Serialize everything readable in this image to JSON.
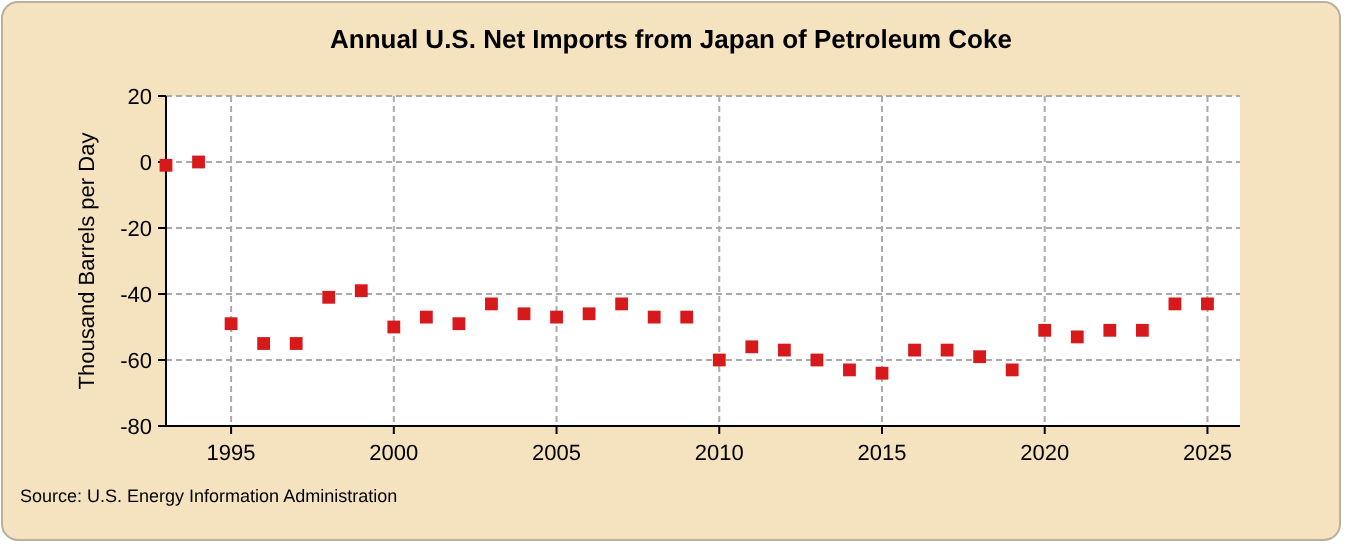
{
  "chart_data": {
    "type": "scatter",
    "title": "Annual U.S. Net Imports from Japan of Petroleum Coke",
    "ylabel": "Thousand Barrels per Day",
    "x": [
      1993,
      1994,
      1995,
      1996,
      1997,
      1998,
      1999,
      2000,
      2001,
      2002,
      2003,
      2004,
      2005,
      2006,
      2007,
      2008,
      2009,
      2010,
      2011,
      2012,
      2013,
      2014,
      2015,
      2016,
      2017,
      2018,
      2019,
      2020,
      2021,
      2022,
      2023,
      2024,
      2025
    ],
    "values": [
      -1,
      0,
      -49,
      -55,
      -55,
      -41,
      -39,
      -50,
      -47,
      -49,
      -43,
      -46,
      -47,
      -46,
      -43,
      -47,
      -47,
      -60,
      -56,
      -57,
      -60,
      -63,
      -64,
      -57,
      -57,
      -59,
      -63,
      -51,
      -53,
      -51,
      -51,
      -43,
      -43
    ],
    "color": "#d7191c",
    "marker": "square",
    "xlim": [
      1993,
      2026
    ],
    "xticks": [
      1995,
      2000,
      2005,
      2010,
      2015,
      2020,
      2025
    ],
    "ylim": [
      -80,
      20
    ],
    "yticks": [
      -80,
      -60,
      -40,
      -20,
      0,
      20
    ],
    "grid": true,
    "annotations": [
      "Source: U.S. Energy Information Administration"
    ]
  }
}
